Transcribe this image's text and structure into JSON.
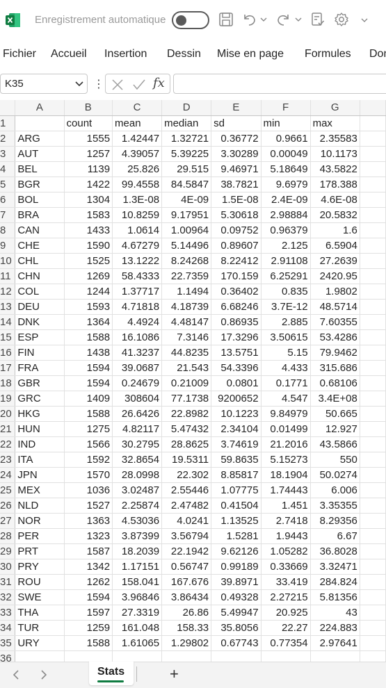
{
  "app": {
    "autosave_label": "Enregistrement automatique",
    "accent_color": "#107c41"
  },
  "menu": {
    "items": [
      "Fichier",
      "Accueil",
      "Insertion",
      "Dessin",
      "Mise en page",
      "Formules",
      "Don"
    ]
  },
  "formula_bar": {
    "name_box": "K35",
    "fx_label": "fx",
    "value": ""
  },
  "grid": {
    "columns": [
      "A",
      "B",
      "C",
      "D",
      "E",
      "F",
      "G"
    ],
    "header_row": [
      "",
      "count",
      "mean",
      "median",
      "sd",
      "min",
      "max"
    ],
    "rows": [
      [
        "ARG",
        "1555",
        "1.42447",
        "1.32721",
        "0.36772",
        "0.9661",
        "2.35583"
      ],
      [
        "AUT",
        "1257",
        "4.39057",
        "5.39225",
        "3.30289",
        "0.00049",
        "10.1173"
      ],
      [
        "BEL",
        "1139",
        "25.826",
        "29.515",
        "9.46971",
        "5.18649",
        "43.5822"
      ],
      [
        "BGR",
        "1422",
        "99.4558",
        "84.5847",
        "38.7821",
        "9.6979",
        "178.388"
      ],
      [
        "BOL",
        "1304",
        "1.3E-08",
        "4E-09",
        "1.5E-08",
        "2.4E-09",
        "4.6E-08"
      ],
      [
        "BRA",
        "1583",
        "10.8259",
        "9.17951",
        "5.30618",
        "2.98884",
        "20.5832"
      ],
      [
        "CAN",
        "1433",
        "1.0614",
        "1.00964",
        "0.09752",
        "0.96379",
        "1.6"
      ],
      [
        "CHE",
        "1590",
        "4.67279",
        "5.14496",
        "0.89607",
        "2.125",
        "6.5904"
      ],
      [
        "CHL",
        "1525",
        "13.1222",
        "8.24268",
        "8.22412",
        "2.91108",
        "27.2639"
      ],
      [
        "CHN",
        "1269",
        "58.4333",
        "22.7359",
        "170.159",
        "6.25291",
        "2420.95"
      ],
      [
        "COL",
        "1244",
        "1.37717",
        "1.1494",
        "0.36402",
        "0.835",
        "1.9802"
      ],
      [
        "DEU",
        "1593",
        "4.71818",
        "4.18739",
        "6.68246",
        "3.7E-12",
        "48.5714"
      ],
      [
        "DNK",
        "1364",
        "4.4924",
        "4.48147",
        "0.86935",
        "2.885",
        "7.60355"
      ],
      [
        "ESP",
        "1588",
        "16.1086",
        "7.3146",
        "17.3296",
        "3.50615",
        "53.4286"
      ],
      [
        "FIN",
        "1438",
        "41.3237",
        "44.8235",
        "13.5751",
        "5.15",
        "79.9462"
      ],
      [
        "FRA",
        "1594",
        "39.0687",
        "21.543",
        "54.3396",
        "4.433",
        "315.686"
      ],
      [
        "GBR",
        "1594",
        "0.24679",
        "0.21009",
        "0.0801",
        "0.1771",
        "0.68106"
      ],
      [
        "GRC",
        "1409",
        "308604",
        "77.1738",
        "9200652",
        "4.547",
        "3.4E+08"
      ],
      [
        "HKG",
        "1588",
        "26.6426",
        "22.8982",
        "10.1223",
        "9.84979",
        "50.665"
      ],
      [
        "HUN",
        "1275",
        "4.82117",
        "5.47432",
        "2.34104",
        "0.01499",
        "12.927"
      ],
      [
        "IND",
        "1566",
        "30.2795",
        "28.8625",
        "3.74619",
        "21.2016",
        "43.5866"
      ],
      [
        "ITA",
        "1592",
        "32.8654",
        "19.5311",
        "59.8635",
        "5.15273",
        "550"
      ],
      [
        "JPN",
        "1570",
        "28.0998",
        "22.302",
        "8.85817",
        "18.1904",
        "50.0274"
      ],
      [
        "MEX",
        "1036",
        "3.02487",
        "2.55446",
        "1.07775",
        "1.74443",
        "6.006"
      ],
      [
        "NLD",
        "1527",
        "2.25874",
        "2.47482",
        "0.41504",
        "1.451",
        "3.35355"
      ],
      [
        "NOR",
        "1363",
        "4.53036",
        "4.0241",
        "1.13525",
        "2.7418",
        "8.29356"
      ],
      [
        "PER",
        "1323",
        "3.87399",
        "3.56794",
        "1.5281",
        "1.9443",
        "6.67"
      ],
      [
        "PRT",
        "1587",
        "18.2039",
        "22.1942",
        "9.62126",
        "1.05282",
        "36.8028"
      ],
      [
        "PRY",
        "1342",
        "1.17151",
        "0.56747",
        "0.99189",
        "0.33669",
        "3.32471"
      ],
      [
        "ROU",
        "1262",
        "158.041",
        "167.676",
        "39.8971",
        "33.419",
        "284.824"
      ],
      [
        "SWE",
        "1594",
        "3.96846",
        "3.86434",
        "0.49328",
        "2.27215",
        "5.81356"
      ],
      [
        "THA",
        "1597",
        "27.3319",
        "26.86",
        "5.49947",
        "20.925",
        "43"
      ],
      [
        "TUR",
        "1259",
        "161.048",
        "158.33",
        "35.8056",
        "22.27",
        "224.883"
      ],
      [
        "URY",
        "1588",
        "1.61065",
        "1.29802",
        "0.67743",
        "0.77354",
        "2.97641"
      ]
    ],
    "row_numbers": [
      "1",
      "2",
      "3",
      "4",
      "5",
      "6",
      "7",
      "8",
      "9",
      "10",
      "11",
      "12",
      "13",
      "14",
      "15",
      "16",
      "17",
      "18",
      "19",
      "20",
      "21",
      "22",
      "23",
      "24",
      "25",
      "26",
      "27",
      "28",
      "29",
      "30",
      "31",
      "32",
      "33",
      "34",
      "35",
      "36"
    ]
  },
  "sheets": {
    "active": "Stats",
    "add_label": "+"
  }
}
